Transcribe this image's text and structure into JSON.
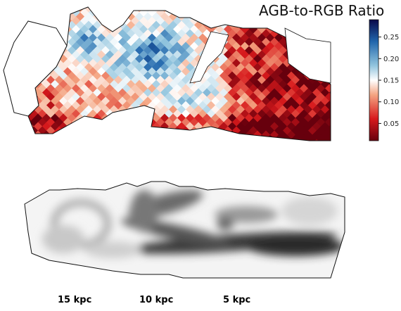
{
  "chart_data": [
    {
      "type": "heatmap",
      "title": "AGB-to-RGB Ratio",
      "colorbar": {
        "min": 0.01,
        "max": 0.29,
        "ticks": [
          0.05,
          0.1,
          0.15,
          0.2,
          0.25
        ],
        "tick_labels": [
          "0.05",
          "0.10",
          "0.15",
          "0.20",
          "0.25"
        ],
        "colors": [
          "#67000d",
          "#d7191c",
          "#f4a582",
          "#ffffff",
          "#92c5de",
          "#2166ac",
          "#08084a"
        ]
      },
      "note_regions": [
        {
          "region": "outer-left",
          "ratio": 0.1
        },
        {
          "region": "center-left",
          "ratio": 0.17
        },
        {
          "region": "upper-center",
          "ratio": 0.22
        },
        {
          "region": "right",
          "ratio": 0.07
        }
      ]
    },
    {
      "type": "heatmap",
      "colormap": "greyscale",
      "distance_labels": [
        "15 kpc",
        "10 kpc",
        "5 kpc"
      ]
    }
  ]
}
